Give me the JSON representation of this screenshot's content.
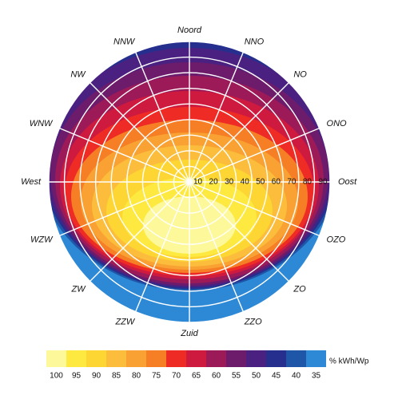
{
  "chart_data": {
    "type": "polar-heatmap",
    "title": "",
    "directions": [
      "Noord",
      "NNO",
      "NO",
      "ONO",
      "Oost",
      "OZO",
      "ZO",
      "ZZO",
      "Zuid",
      "ZZW",
      "ZW",
      "WZW",
      "West",
      "WNW",
      "NW",
      "NNW"
    ],
    "tilt_ticks": [
      "10",
      "20",
      "30",
      "40",
      "50",
      "60",
      "70",
      "80",
      "90"
    ],
    "tilt_range": [
      0,
      90
    ],
    "legend": {
      "unit": "% kWh/Wp",
      "levels": [
        "100",
        "95",
        "90",
        "85",
        "80",
        "75",
        "70",
        "65",
        "60",
        "55",
        "50",
        "45",
        "40",
        "35"
      ],
      "colors": [
        "#fdf89a",
        "#fde93f",
        "#fdd633",
        "#fbbd3b",
        "#f9a233",
        "#f67f26",
        "#ee2b25",
        "#cf1a3f",
        "#9d1a59",
        "#6c1c6b",
        "#4a2181",
        "#262f8e",
        "#1f56a8",
        "#2d89d6"
      ]
    },
    "grid": true
  }
}
